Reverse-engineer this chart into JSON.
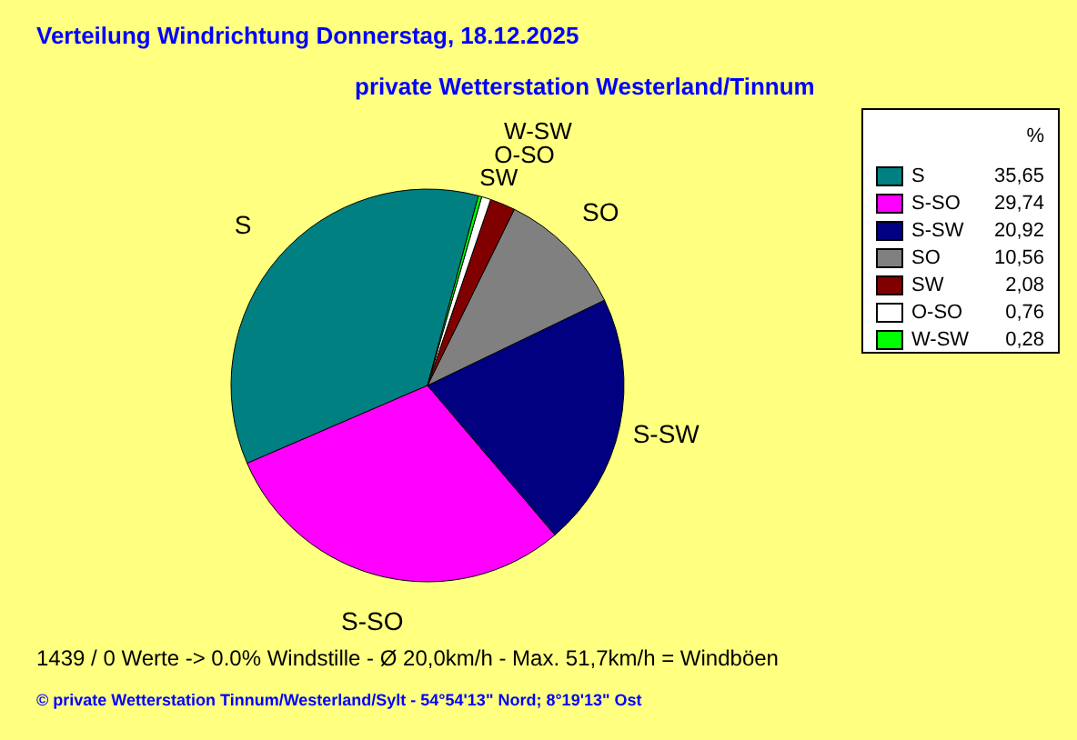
{
  "chart_data": {
    "type": "pie",
    "title": "Verteilung Windrichtung   Donnerstag, 18.12.2025",
    "subtitle": "private Wetterstation Westerland/Tinnum",
    "legend_title": "%",
    "legend": "top right",
    "categories": [
      "S",
      "S-SO",
      "S-SW",
      "SO",
      "SW",
      "O-SO",
      "W-SW"
    ],
    "values": [
      35.65,
      29.74,
      20.92,
      10.56,
      2.08,
      0.76,
      0.28
    ],
    "value_labels": [
      "35,65",
      "29,74",
      "20,92",
      "10,56",
      "2,08",
      "0,76",
      "0,28"
    ],
    "colors": [
      "#008080",
      "#ff00ff",
      "#000080",
      "#808080",
      "#800000",
      "#ffffff",
      "#00ff00"
    ],
    "annotations": [
      "1439 / 0 Werte  -> 0.0% Windstille   -   Ø 20,0km/h  -  Max. 51,7km/h = Windböen",
      "© private Wetterstation Tinnum/Westerland/Sylt   -   54°54'13\" Nord; 8°19'13\" Ost"
    ]
  }
}
